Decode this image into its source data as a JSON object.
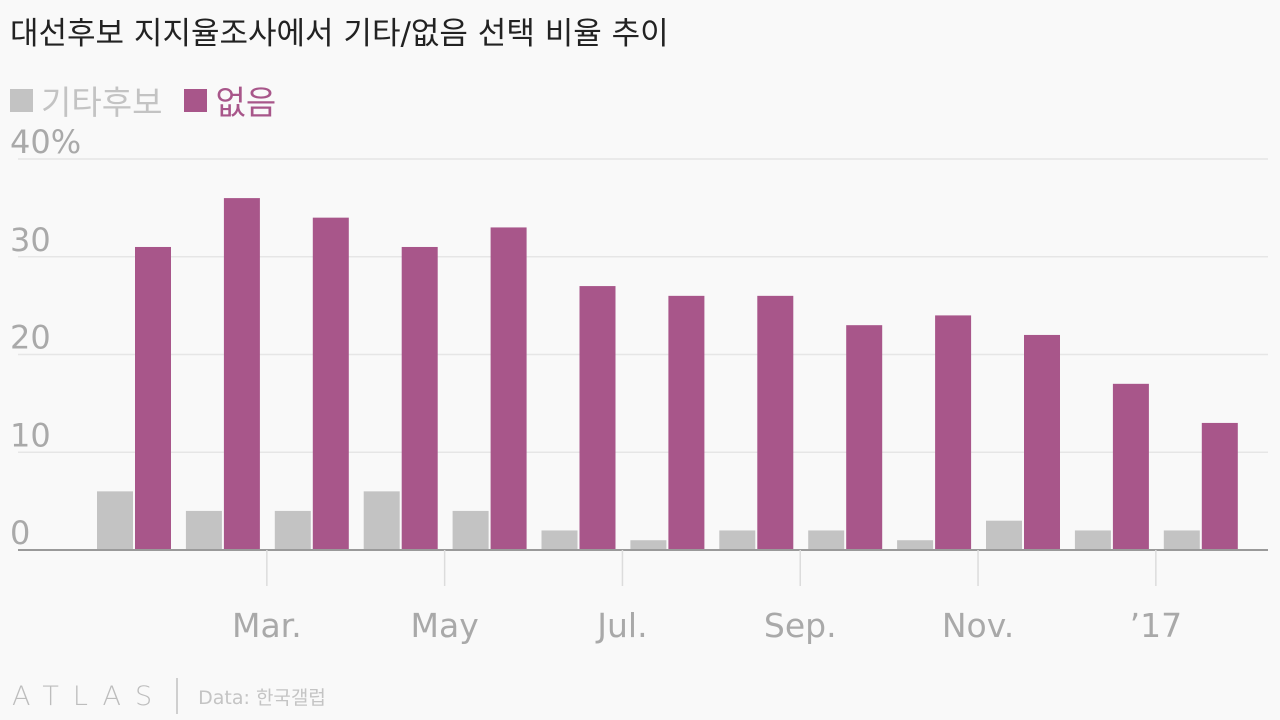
{
  "title": "대선후보 지지율조사에서 기타/없음 선택 비율 추이",
  "legend": [
    {
      "label": "기타후보",
      "color": "#c3c3c3"
    },
    {
      "label": "없음",
      "color": "#a8568a"
    }
  ],
  "footer": {
    "logo": "ATLAS",
    "source": "Data: 한국갤럽"
  },
  "chart_data": {
    "type": "bar",
    "ylim": [
      0,
      40
    ],
    "yticks": [
      "0",
      "10",
      "20",
      "30",
      "40%"
    ],
    "xticks": [
      "Mar.",
      "May",
      "Jul.",
      "Sep.",
      "Nov.",
      "’17"
    ],
    "grid": true,
    "legend_position": "top-left",
    "series": [
      {
        "name": "기타후보",
        "color": "#c3c3c3",
        "values": [
          6,
          4,
          4,
          6,
          4,
          2,
          1,
          2,
          2,
          1,
          3,
          2,
          2
        ]
      },
      {
        "name": "없음",
        "color": "#a8568a",
        "values": [
          31,
          36,
          34,
          31,
          33,
          27,
          26,
          26,
          23,
          24,
          22,
          17,
          13
        ]
      }
    ]
  }
}
